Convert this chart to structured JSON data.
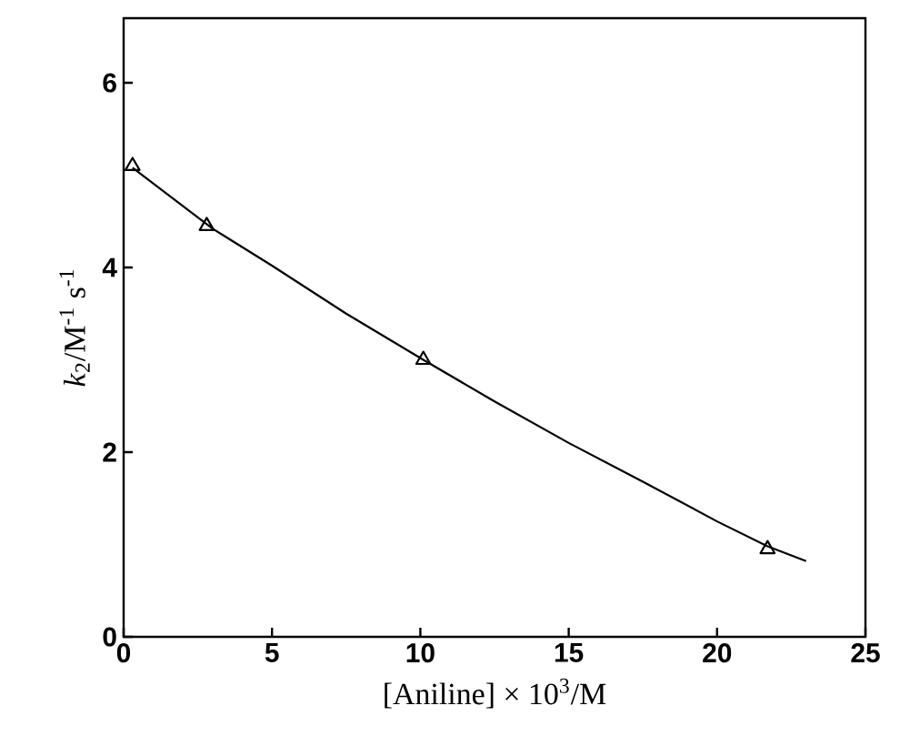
{
  "chart_data": {
    "type": "scatter",
    "xlabel": "[Aniline] × 10$^{3}$/M",
    "ylabel": "*k*$_{2}$/M$^{-1}$ s$^{-1}$",
    "xlim": [
      0,
      25
    ],
    "ylim": [
      0,
      6.7
    ],
    "xticks": [
      0,
      5,
      10,
      15,
      20,
      25
    ],
    "yticks": [
      0,
      2,
      4,
      6
    ],
    "series": [
      {
        "marker": "triangle",
        "color": "#000000",
        "x": [
          0.3,
          2.8,
          10.1,
          21.7
        ],
        "values": [
          5.1,
          4.45,
          3.0,
          0.95
        ]
      },
      {
        "type": "line",
        "marker": "none",
        "line_style": "solid",
        "color": "#000000",
        "x": [
          0.3,
          3,
          5,
          7.5,
          10.1,
          12.5,
          15,
          17.5,
          20,
          21.7,
          23
        ],
        "values": [
          5.08,
          4.42,
          4.02,
          3.5,
          3.0,
          2.55,
          2.1,
          1.68,
          1.25,
          0.98,
          0.82
        ]
      }
    ]
  }
}
